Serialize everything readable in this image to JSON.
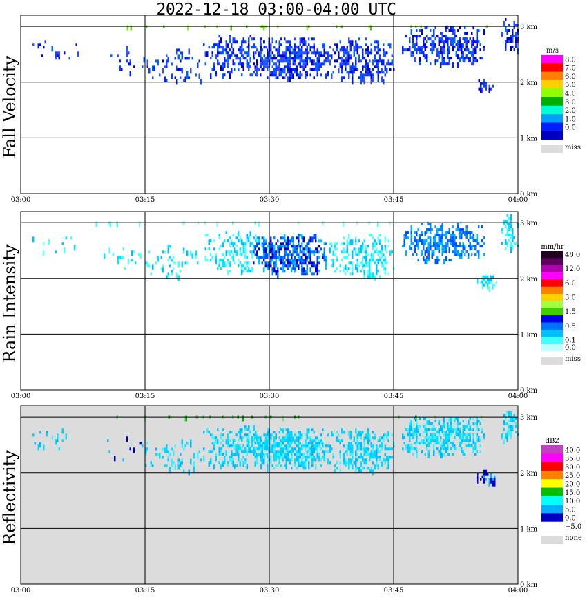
{
  "chart_data": [
    {
      "type": "heatmap",
      "title": "2022-12-18   03:00-04:00 UTC",
      "ylabel": "Fall Velocity",
      "x_ticks": [
        "03:00",
        "03:15",
        "03:30",
        "03:45",
        "04:00"
      ],
      "y_ticks": [
        "0 km",
        "1 km",
        "2 km",
        "3 km"
      ],
      "ylim_km": [
        0,
        3.2
      ],
      "xlim_min": [
        0,
        60
      ],
      "background": "#ffffff",
      "legend_unit": "m/s",
      "legend_entries": [
        {
          "label": "8.0",
          "color": "#ff00ff"
        },
        {
          "label": "7.0",
          "color": "#ff0000"
        },
        {
          "label": "6.0",
          "color": "#ff8000"
        },
        {
          "label": "5.0",
          "color": "#ffd000"
        },
        {
          "label": "4.0",
          "color": "#90ff00"
        },
        {
          "label": "3.0",
          "color": "#00b000"
        },
        {
          "label": "2.0",
          "color": "#00ffd0"
        },
        {
          "label": "1.0",
          "color": "#00a0ff"
        },
        {
          "label": "0.0",
          "color": "#0020ff"
        },
        {
          "label": "",
          "color": "#0000c0"
        }
      ],
      "missing_label": "miss",
      "palette": [
        "#0020ff",
        "#0000c8",
        "#1040ff",
        "#0060ff",
        "#3050ff"
      ],
      "bands": [
        {
          "x0": 0.5,
          "x1": 59.5,
          "y0": 2.98,
          "y1": 3.02,
          "density": 0.35,
          "colors": [
            "#80e020",
            "#50d000",
            "#a0f040"
          ]
        },
        {
          "x0": 1,
          "x1": 7,
          "y0": 2.45,
          "y1": 2.8,
          "density": 0.12
        },
        {
          "x0": 10,
          "x1": 15,
          "y0": 2.2,
          "y1": 2.65,
          "density": 0.08
        },
        {
          "x0": 15,
          "x1": 22,
          "y0": 2.05,
          "y1": 2.6,
          "density": 0.22
        },
        {
          "x0": 22,
          "x1": 30,
          "y0": 2.15,
          "y1": 2.85,
          "density": 0.45
        },
        {
          "x0": 28,
          "x1": 37,
          "y0": 2.1,
          "y1": 2.8,
          "density": 0.7
        },
        {
          "x0": 37,
          "x1": 45,
          "y0": 2.05,
          "y1": 2.8,
          "density": 0.5
        },
        {
          "x0": 46,
          "x1": 56,
          "y0": 2.35,
          "y1": 3.0,
          "density": 0.55
        },
        {
          "x0": 55,
          "x1": 57.5,
          "y0": 1.85,
          "y1": 2.05,
          "density": 0.5
        },
        {
          "x0": 58,
          "x1": 60,
          "y0": 2.55,
          "y1": 3.15,
          "density": 0.6
        }
      ]
    },
    {
      "type": "heatmap",
      "ylabel": "Rain Intensity",
      "x_ticks": [
        "03:00",
        "03:15",
        "03:30",
        "03:45",
        "04:00"
      ],
      "y_ticks": [
        "0 km",
        "1 km",
        "2 km",
        "3 km"
      ],
      "ylim_km": [
        0,
        3.2
      ],
      "xlim_min": [
        0,
        60
      ],
      "background": "#ffffff",
      "legend_unit": "mm/hr",
      "legend_entries": [
        {
          "label": "48.0",
          "color": "#200020"
        },
        {
          "label": "",
          "color": "#600060"
        },
        {
          "label": "12.0",
          "color": "#b000b0"
        },
        {
          "label": "",
          "color": "#ff00ff"
        },
        {
          "label": "6.0",
          "color": "#ff0000"
        },
        {
          "label": "",
          "color": "#ff8000"
        },
        {
          "label": "3.0",
          "color": "#ffd000"
        },
        {
          "label": "",
          "color": "#a0ff40"
        },
        {
          "label": "1.5",
          "color": "#40d000"
        },
        {
          "label": "",
          "color": "#0000e0"
        },
        {
          "label": "0.5",
          "color": "#0070ff"
        },
        {
          "label": "",
          "color": "#00c0ff"
        },
        {
          "label": "0.1",
          "color": "#40ffff"
        },
        {
          "label": "0.0",
          "color": "#c0ffff"
        }
      ],
      "missing_label": "miss",
      "palette": [
        "#40ffff",
        "#00e8ff",
        "#00c0ff",
        "#60ffff"
      ],
      "bands": [
        {
          "x0": 0.5,
          "x1": 59.5,
          "y0": 2.98,
          "y1": 3.02,
          "density": 0.25,
          "colors": [
            "#40ffff",
            "#80ffff"
          ]
        },
        {
          "x0": 1,
          "x1": 7,
          "y0": 2.45,
          "y1": 2.8,
          "density": 0.12
        },
        {
          "x0": 10,
          "x1": 15,
          "y0": 2.2,
          "y1": 2.65,
          "density": 0.08
        },
        {
          "x0": 15,
          "x1": 22,
          "y0": 2.05,
          "y1": 2.6,
          "density": 0.22
        },
        {
          "x0": 22,
          "x1": 30,
          "y0": 2.15,
          "y1": 2.85,
          "density": 0.4
        },
        {
          "x0": 28,
          "x1": 37,
          "y0": 2.1,
          "y1": 2.8,
          "density": 0.7,
          "colors": [
            "#0050ff",
            "#0000d0",
            "#0080ff",
            "#00c0ff"
          ]
        },
        {
          "x0": 37,
          "x1": 45,
          "y0": 2.05,
          "y1": 2.8,
          "density": 0.45
        },
        {
          "x0": 46,
          "x1": 56,
          "y0": 2.35,
          "y1": 3.0,
          "density": 0.55,
          "colors": [
            "#0080ff",
            "#00b0ff",
            "#0050ff"
          ]
        },
        {
          "x0": 55,
          "x1": 57.5,
          "y0": 1.85,
          "y1": 2.05,
          "density": 0.5
        },
        {
          "x0": 58,
          "x1": 60,
          "y0": 2.55,
          "y1": 3.15,
          "density": 0.6
        }
      ]
    },
    {
      "type": "heatmap",
      "ylabel": "Reflectivity",
      "x_ticks": [
        "03:00",
        "03:15",
        "03:30",
        "03:45",
        "04:00"
      ],
      "y_ticks": [
        "0 km",
        "1 km",
        "2 km",
        "3 km"
      ],
      "ylim_km": [
        0,
        3.2
      ],
      "xlim_min": [
        0,
        60
      ],
      "background": "#dcdcdc",
      "legend_unit": "dBZ",
      "legend_entries": [
        {
          "label": "40.0",
          "color": "#c040c0"
        },
        {
          "label": "35.0",
          "color": "#ff00ff"
        },
        {
          "label": "30.0",
          "color": "#ff0000"
        },
        {
          "label": "25.0",
          "color": "#ff8000"
        },
        {
          "label": "20.0",
          "color": "#ffff00"
        },
        {
          "label": "15.0",
          "color": "#00c000"
        },
        {
          "label": "10.0",
          "color": "#00ffff"
        },
        {
          "label": "5.0",
          "color": "#00b0ff"
        },
        {
          "label": "0.0",
          "color": "#0000c0"
        },
        {
          "label": "−5.0",
          "color": "#ffffff"
        }
      ],
      "missing_label": "none",
      "palette": [
        "#00d0ff",
        "#00e0ff",
        "#00b8ff",
        "#40f0ff"
      ],
      "bands": [
        {
          "x0": 0.5,
          "x1": 59.5,
          "y0": 2.98,
          "y1": 3.02,
          "density": 0.35,
          "colors": [
            "#40d040",
            "#00b000",
            "#80e080"
          ]
        },
        {
          "x0": 1,
          "x1": 7,
          "y0": 2.45,
          "y1": 2.8,
          "density": 0.12
        },
        {
          "x0": 10,
          "x1": 15,
          "y0": 2.2,
          "y1": 2.65,
          "density": 0.08,
          "colors": [
            "#0000c0",
            "#00c0ff"
          ]
        },
        {
          "x0": 15,
          "x1": 22,
          "y0": 2.05,
          "y1": 2.6,
          "density": 0.22
        },
        {
          "x0": 22,
          "x1": 30,
          "y0": 2.15,
          "y1": 2.85,
          "density": 0.45
        },
        {
          "x0": 28,
          "x1": 37,
          "y0": 2.1,
          "y1": 2.8,
          "density": 0.7
        },
        {
          "x0": 37,
          "x1": 45,
          "y0": 2.05,
          "y1": 2.8,
          "density": 0.5
        },
        {
          "x0": 46,
          "x1": 56,
          "y0": 2.35,
          "y1": 3.0,
          "density": 0.55
        },
        {
          "x0": 55,
          "x1": 57.5,
          "y0": 1.85,
          "y1": 2.05,
          "density": 0.5,
          "colors": [
            "#0000c0",
            "#00b0ff"
          ]
        },
        {
          "x0": 58,
          "x1": 60,
          "y0": 2.55,
          "y1": 3.15,
          "density": 0.6
        }
      ]
    }
  ]
}
